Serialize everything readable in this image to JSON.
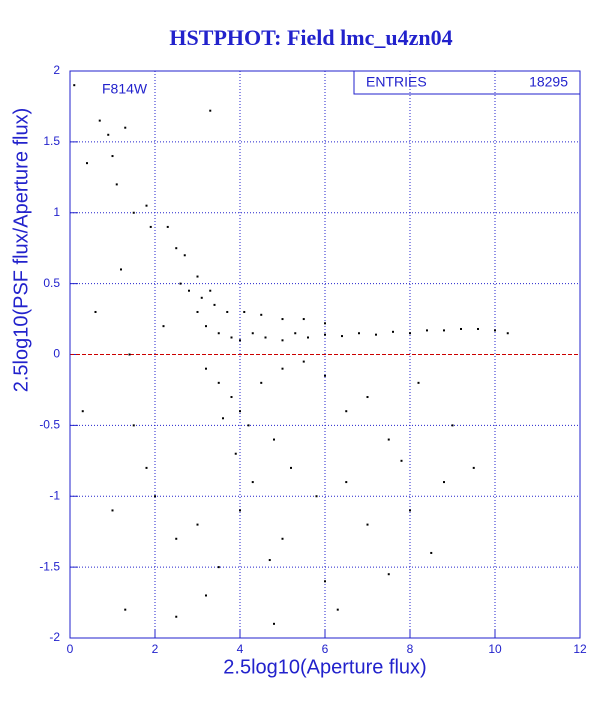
{
  "chart_data": {
    "type": "scatter",
    "title": "HSTPHOT: Field lmc_u4zn04",
    "x_label": "2.5log10(Aperture flux)",
    "y_label": "2.5log10(PSF flux/Aperture flux)",
    "annotation": "F814W",
    "stats": {
      "label": "ENTRIES",
      "value": 18295
    },
    "xlim": [
      0,
      12
    ],
    "xticks": [
      0,
      2,
      4,
      6,
      8,
      10,
      12
    ],
    "ylim": [
      -2,
      2
    ],
    "yticks": [
      -2,
      -1.5,
      -1,
      -0.5,
      0,
      0.5,
      1,
      1.5,
      2
    ],
    "grid": true,
    "reference_line": {
      "y": 0,
      "color": "#cc0000"
    },
    "series": [
      {
        "color": "#000000",
        "x": [
          3.0,
          3.2,
          3.5,
          3.8,
          4.0,
          4.3,
          4.6,
          5.0,
          5.3,
          5.6,
          6.0,
          6.4,
          6.8,
          7.2,
          7.6,
          8.0,
          8.4,
          8.8,
          9.2,
          9.6,
          10.0,
          10.3,
          2.6,
          2.8,
          3.0,
          2.7,
          3.1,
          3.4,
          3.7,
          4.1,
          4.5,
          5.0,
          5.5,
          6.0,
          3.3,
          2.5,
          2.3,
          3.2,
          3.5,
          3.8,
          4.0,
          4.2,
          3.6,
          4.5,
          5.0,
          5.5,
          6.0,
          4.8,
          3.9,
          4.3,
          5.2,
          6.5,
          7.0,
          7.5,
          8.2,
          9.0,
          8.8,
          0.1,
          0.4,
          0.7,
          0.9,
          1.0,
          1.1,
          1.3,
          1.5,
          1.8,
          1.9,
          3.3,
          1.2,
          0.6,
          1.5,
          1.8,
          2.0,
          2.5,
          3.0,
          3.5,
          4.0,
          5.0,
          6.0,
          7.0,
          8.0,
          9.5,
          1.3,
          2.5,
          4.8,
          6.3,
          7.5,
          1.0,
          0.3,
          1.4,
          2.2,
          6.5,
          5.8,
          4.7,
          3.2,
          8.5,
          7.8
        ],
        "y": [
          0.3,
          0.2,
          0.15,
          0.12,
          0.1,
          0.15,
          0.12,
          0.1,
          0.15,
          0.12,
          0.14,
          0.13,
          0.15,
          0.14,
          0.16,
          0.15,
          0.17,
          0.17,
          0.18,
          0.18,
          0.17,
          0.15,
          0.5,
          0.45,
          0.55,
          0.7,
          0.4,
          0.35,
          0.3,
          0.3,
          0.28,
          0.25,
          0.25,
          0.22,
          0.45,
          0.75,
          0.9,
          -0.1,
          -0.2,
          -0.3,
          -0.4,
          -0.5,
          -0.45,
          -0.2,
          -0.1,
          -0.05,
          -0.15,
          -0.6,
          -0.7,
          -0.9,
          -0.8,
          -0.4,
          -0.3,
          -0.6,
          -0.2,
          -0.5,
          -0.9,
          1.9,
          1.35,
          1.65,
          1.55,
          1.4,
          1.2,
          1.6,
          1.0,
          1.05,
          0.9,
          1.72,
          0.6,
          0.3,
          -0.5,
          -0.8,
          -1.0,
          -1.3,
          -1.2,
          -1.5,
          -1.1,
          -1.3,
          -1.6,
          -1.2,
          -1.1,
          -0.8,
          -1.8,
          -1.85,
          -1.9,
          -1.8,
          -1.55,
          -1.1,
          -0.4,
          0.0,
          0.2,
          -0.9,
          -1.0,
          -1.45,
          -1.7,
          -1.4,
          -0.75
        ]
      }
    ]
  }
}
